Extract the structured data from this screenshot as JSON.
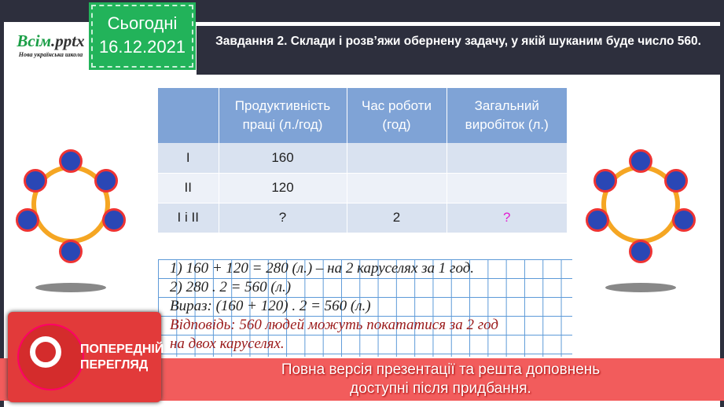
{
  "logo": {
    "brand_main": "Всім",
    "brand_ext": ".pptx",
    "subtitle": "Нова українська школа"
  },
  "date_badge": {
    "label": "Сьогодні",
    "date": "16.12.2021"
  },
  "title": "Завдання 2. Склади і розв’яжи обернену задачу, у якій шуканим буде число 560.",
  "table": {
    "headers": [
      "",
      "Продуктивність праці (л./год)",
      "Час роботи (год)",
      "Загальний виробіток (л.)"
    ],
    "rows": [
      [
        "І",
        "160",
        "",
        ""
      ],
      [
        "ІІ",
        "120",
        "",
        ""
      ],
      [
        "І і ІІ",
        "?",
        "2",
        "?"
      ]
    ]
  },
  "solution": {
    "step1": "1) 160 + 120 = 280 (л.) – на 2 каруселях за 1 год.",
    "step2": "2) 280 . 2 = 560 (л.)",
    "expression": "Вираз: (160 + 120) . 2 = 560 (л.)",
    "answer_line1": "Відповідь: 560 людей можуть покататися за 2 год",
    "answer_line2": "на двох каруселях."
  },
  "preview": {
    "label": "ПОПЕРЕДНІЙ ПЕРЕГЛЯД"
  },
  "banner": {
    "line1": "Повна версія презентації та решта доповнень",
    "line2": "доступні після придбання."
  },
  "colors": {
    "accent_green": "#22b35a",
    "header_blue": "#7fa3d6",
    "banner_red": "#f25c5c",
    "question_pink": "#e21fd0"
  }
}
